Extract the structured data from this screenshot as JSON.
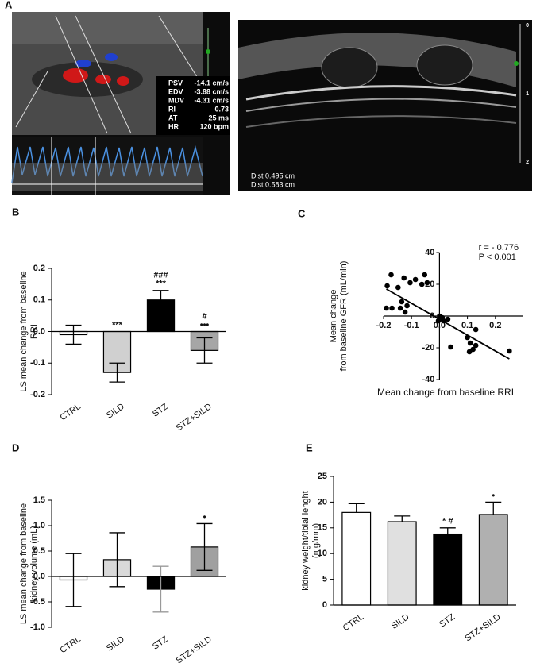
{
  "panel_a": {
    "label": "A",
    "doppler_readings": [
      [
        "PSV",
        "-14.1 cm/s"
      ],
      [
        "EDV",
        "-3.88 cm/s"
      ],
      [
        "MDV",
        "-4.31 cm/s"
      ],
      [
        "RI",
        "0.73"
      ],
      [
        "AT",
        "25 ms"
      ],
      [
        "HR",
        "120 bpm"
      ]
    ],
    "measurements": [
      "Dist 0.495 cm",
      "Dist 0.583 cm"
    ],
    "depth_scale": [
      "0",
      "1",
      "2"
    ]
  },
  "chart_data": [
    {
      "type": "bar",
      "panel_label": "B",
      "ylabel": [
        "LS mean change from baseline",
        "RRI"
      ],
      "categories": [
        "CTRL",
        "SILD",
        "STZ",
        "STZ+SILD"
      ],
      "values": [
        -0.01,
        -0.13,
        0.1,
        -0.06
      ],
      "errors": [
        0.03,
        0.03,
        0.03,
        0.04
      ],
      "error_bars": "both",
      "colors": [
        "#ffffff",
        "#d0d0d0",
        "#000000",
        "#a6a6a6"
      ],
      "annotations": [
        null,
        [
          "***"
        ],
        [
          "###",
          "***"
        ],
        [
          "#",
          "•••"
        ]
      ],
      "ylim": [
        -0.2,
        0.2
      ],
      "yticks": [
        -0.2,
        -0.1,
        {
          "value": 0,
          "label": "0.0"
        },
        0.1,
        0.2
      ]
    },
    {
      "type": "scatter",
      "panel_label": "C",
      "xlabel": "Mean change from baseline RRI",
      "ylabel": [
        "Mean change",
        "from baseline GFR (mL/min)"
      ],
      "x": [
        -0.187,
        -0.173,
        -0.19,
        -0.17,
        -0.148,
        -0.14,
        -0.135,
        -0.127,
        -0.123,
        -0.116,
        -0.105,
        -0.086,
        -0.063,
        -0.053,
        -0.044,
        0.0,
        0.01,
        0.014,
        -0.004,
        0.03,
        0.04,
        0.1,
        0.11,
        0.107,
        0.12,
        0.13,
        0.13,
        0.25
      ],
      "y": [
        19,
        26,
        5,
        5,
        18,
        5,
        9,
        24,
        2.5,
        6.5,
        21,
        23,
        20,
        26,
        21,
        0,
        -1,
        -3,
        -3,
        -2,
        -19.5,
        -13.5,
        -17,
        -22.5,
        -21,
        -18.5,
        -8.5,
        -22
      ],
      "trend_line": {
        "x": [
          -0.19,
          0.25
        ],
        "y": [
          17,
          -27
        ]
      },
      "annotations": [
        "r = - 0.776",
        "P < 0.001"
      ],
      "color": "#000000",
      "xlim": [
        -0.2,
        0.3
      ],
      "xticks": [
        -0.2,
        -0.1,
        {
          "value": 0,
          "label": "0.0"
        },
        0.1,
        0.2
      ],
      "ylim": [
        -40,
        40
      ],
      "yticks": [
        -40,
        -20,
        0,
        20,
        40
      ]
    },
    {
      "type": "bar",
      "panel_label": "D",
      "ylabel": [
        "LS mean change from baseline",
        "kidney volume (mL)"
      ],
      "categories": [
        "CTRL",
        "SILD",
        "STZ",
        "STZ+SILD"
      ],
      "values": [
        -0.07,
        0.33,
        -0.25,
        0.58
      ],
      "errors": [
        0.52,
        0.53,
        0.45,
        0.46
      ],
      "error_bars": "both",
      "colors": [
        "#ffffff",
        "#d9d9d9",
        "#000000",
        "#a0a0a0"
      ],
      "error_colors": [
        "#000000",
        "#000000",
        "#999999",
        "#000000"
      ],
      "annotations": [
        null,
        null,
        null,
        [
          "•"
        ]
      ],
      "ylim": [
        -1,
        1.5
      ],
      "yticks": [
        {
          "value": -1,
          "label": "-1.0"
        },
        -0.5,
        {
          "value": 0,
          "label": "0.0"
        },
        0.5,
        {
          "value": 1,
          "label": "1.0"
        },
        1.5
      ]
    },
    {
      "type": "bar",
      "panel_label": "E",
      "ylabel": [
        "kidney weight/tibial lenght",
        "(mg/mm)"
      ],
      "categories": [
        "CTRL",
        "SILD",
        "STZ",
        "STZ+SILD"
      ],
      "values": [
        18,
        16.2,
        13.8,
        17.6
      ],
      "errors": [
        1.7,
        1.1,
        1.2,
        2.4
      ],
      "error_bars": "up",
      "colors": [
        "#ffffff",
        "#e0e0e0",
        "#000000",
        "#b0b0b0"
      ],
      "annotations": [
        null,
        null,
        [
          "* #"
        ],
        [
          "•"
        ]
      ],
      "ylim": [
        0,
        25
      ],
      "yticks": [
        0,
        5,
        10,
        15,
        20,
        25
      ]
    }
  ]
}
